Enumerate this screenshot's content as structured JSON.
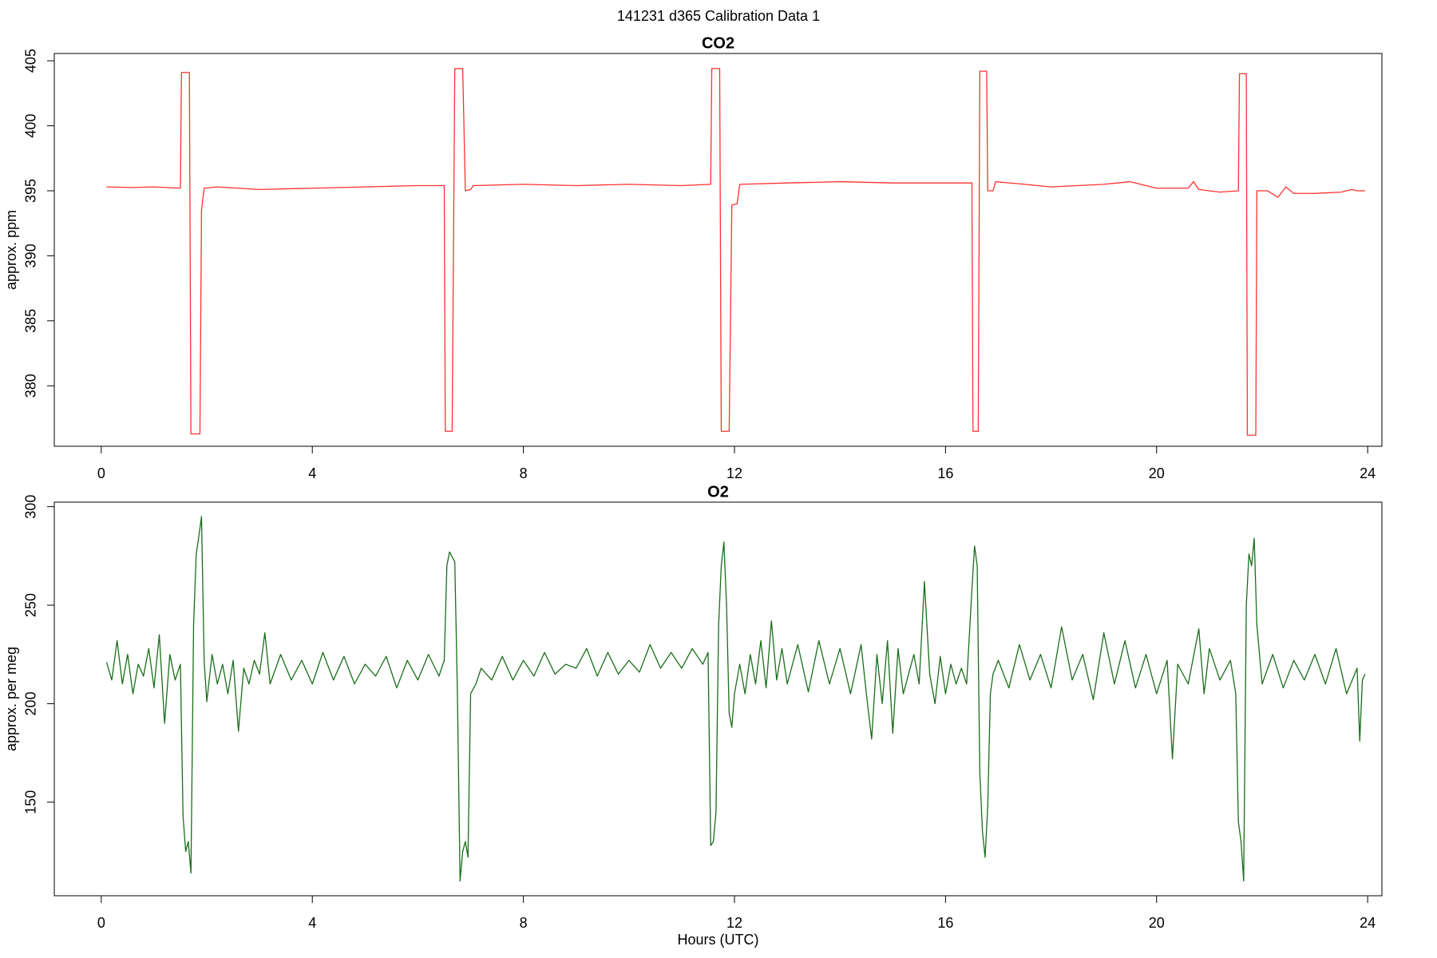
{
  "title": "141231   d365   Calibration Data 1",
  "chart_data": [
    {
      "type": "line",
      "title": "CO2",
      "ylabel": "approx. ppm",
      "color": "#ff3030",
      "xlim": [
        -0.89,
        24.27
      ],
      "xticks": [
        0,
        4,
        8,
        12,
        16,
        20,
        24
      ],
      "ylim": [
        375.35,
        405.56
      ],
      "yticks": [
        380,
        385,
        390,
        395,
        400,
        405
      ],
      "x": [
        0.1,
        0.6,
        1.0,
        1.5,
        1.52,
        1.67,
        1.7,
        1.87,
        1.9,
        1.95,
        2.2,
        3,
        4,
        5,
        6,
        6.5,
        6.52,
        6.65,
        6.7,
        6.85,
        6.9,
        7.0,
        7.05,
        8,
        9,
        10,
        11,
        11.55,
        11.57,
        11.72,
        11.75,
        11.9,
        11.95,
        12.05,
        12.1,
        13,
        14,
        15,
        16,
        16.5,
        16.52,
        16.62,
        16.65,
        16.78,
        16.8,
        16.9,
        16.95,
        17.5,
        18,
        19,
        19.5,
        19.7,
        20,
        20.6,
        20.7,
        20.8,
        21.2,
        21.55,
        21.57,
        21.7,
        21.72,
        21.88,
        21.9,
        22.1,
        22.3,
        22.45,
        22.6,
        23,
        23.5,
        23.7,
        23.8,
        23.95
      ],
      "values": [
        395.3,
        395.25,
        395.3,
        395.2,
        404.1,
        404.1,
        376.3,
        376.3,
        393.5,
        395.2,
        395.3,
        395.1,
        395.2,
        395.3,
        395.4,
        395.4,
        376.5,
        376.5,
        404.4,
        404.4,
        395.0,
        395.1,
        395.4,
        395.5,
        395.4,
        395.5,
        395.4,
        395.5,
        404.4,
        404.4,
        376.5,
        376.5,
        393.9,
        394.0,
        395.5,
        395.6,
        395.7,
        395.6,
        395.6,
        395.6,
        376.5,
        376.5,
        404.2,
        404.2,
        395.0,
        395.0,
        395.7,
        395.5,
        395.3,
        395.5,
        395.7,
        395.5,
        395.2,
        395.2,
        395.7,
        395.1,
        394.9,
        395.0,
        404.0,
        404.0,
        376.2,
        376.2,
        395.0,
        395.0,
        394.5,
        395.3,
        394.8,
        394.8,
        394.9,
        395.1,
        395.0,
        395.0
      ]
    },
    {
      "type": "line",
      "title": "O2",
      "ylabel": "approx. per meg",
      "xlabel": "Hours (UTC)",
      "color": "#1a6e1a",
      "xlim": [
        -0.89,
        24.27
      ],
      "xticks": [
        0,
        4,
        8,
        12,
        16,
        20,
        24
      ],
      "ylim": [
        102.5,
        302.3
      ],
      "yticks": [
        150,
        200,
        250,
        300
      ],
      "x": [
        0.1,
        0.2,
        0.3,
        0.4,
        0.5,
        0.6,
        0.7,
        0.8,
        0.9,
        1.0,
        1.1,
        1.2,
        1.3,
        1.4,
        1.5,
        1.55,
        1.6,
        1.65,
        1.7,
        1.75,
        1.8,
        1.85,
        1.9,
        1.95,
        2.0,
        2.1,
        2.2,
        2.3,
        2.4,
        2.5,
        2.6,
        2.7,
        2.8,
        2.9,
        3.0,
        3.1,
        3.2,
        3.4,
        3.6,
        3.8,
        4.0,
        4.2,
        4.4,
        4.6,
        4.8,
        5.0,
        5.2,
        5.4,
        5.6,
        5.8,
        6.0,
        6.2,
        6.4,
        6.5,
        6.55,
        6.6,
        6.7,
        6.75,
        6.8,
        6.85,
        6.9,
        6.95,
        7.0,
        7.1,
        7.2,
        7.4,
        7.6,
        7.8,
        8.0,
        8.2,
        8.4,
        8.6,
        8.8,
        9.0,
        9.2,
        9.4,
        9.6,
        9.8,
        10.0,
        10.2,
        10.4,
        10.6,
        10.8,
        11.0,
        11.2,
        11.4,
        11.5,
        11.55,
        11.6,
        11.65,
        11.7,
        11.75,
        11.8,
        11.85,
        11.9,
        11.95,
        12.0,
        12.1,
        12.2,
        12.3,
        12.4,
        12.5,
        12.6,
        12.7,
        12.8,
        12.9,
        13.0,
        13.2,
        13.4,
        13.6,
        13.8,
        14.0,
        14.2,
        14.4,
        14.5,
        14.6,
        14.7,
        14.8,
        14.9,
        15.0,
        15.1,
        15.2,
        15.4,
        15.5,
        15.6,
        15.7,
        15.8,
        15.9,
        16.0,
        16.1,
        16.2,
        16.3,
        16.4,
        16.5,
        16.55,
        16.6,
        16.65,
        16.7,
        16.75,
        16.8,
        16.85,
        16.9,
        17.0,
        17.2,
        17.4,
        17.6,
        17.8,
        18.0,
        18.2,
        18.4,
        18.6,
        18.8,
        19.0,
        19.2,
        19.4,
        19.6,
        19.8,
        20.0,
        20.2,
        20.3,
        20.4,
        20.6,
        20.8,
        20.9,
        21.0,
        21.2,
        21.4,
        21.5,
        21.55,
        21.6,
        21.65,
        21.7,
        21.75,
        21.8,
        21.85,
        21.9,
        22.0,
        22.2,
        22.4,
        22.6,
        22.8,
        23.0,
        23.2,
        23.4,
        23.6,
        23.8,
        23.85,
        23.9,
        23.95
      ],
      "values": [
        221,
        212,
        232,
        210,
        225,
        205,
        220,
        214,
        228,
        208,
        235,
        190,
        225,
        212,
        220,
        143,
        125,
        130,
        114,
        240,
        276,
        285,
        295,
        222,
        201,
        225,
        210,
        220,
        205,
        222,
        186,
        218,
        210,
        222,
        215,
        236,
        210,
        225,
        212,
        222,
        210,
        226,
        212,
        224,
        210,
        220,
        214,
        224,
        208,
        222,
        212,
        225,
        214,
        222,
        270,
        277,
        272,
        205,
        110,
        125,
        130,
        122,
        205,
        210,
        218,
        212,
        224,
        212,
        222,
        214,
        226,
        215,
        220,
        218,
        228,
        214,
        226,
        215,
        222,
        216,
        230,
        218,
        226,
        218,
        228,
        220,
        226,
        128,
        130,
        145,
        240,
        270,
        282,
        250,
        195,
        188,
        205,
        220,
        205,
        225,
        210,
        232,
        208,
        242,
        212,
        228,
        210,
        230,
        206,
        232,
        210,
        228,
        205,
        230,
        205,
        182,
        225,
        200,
        232,
        185,
        228,
        205,
        225,
        210,
        262,
        215,
        200,
        224,
        205,
        220,
        210,
        218,
        210,
        258,
        280,
        270,
        165,
        135,
        122,
        148,
        205,
        215,
        222,
        208,
        230,
        212,
        225,
        208,
        239,
        212,
        225,
        202,
        236,
        210,
        232,
        208,
        225,
        205,
        222,
        172,
        220,
        210,
        238,
        205,
        228,
        212,
        222,
        205,
        140,
        130,
        110,
        250,
        276,
        270,
        284,
        240,
        210,
        225,
        208,
        222,
        212,
        225,
        210,
        228,
        205,
        218,
        181,
        212,
        215
      ]
    }
  ]
}
